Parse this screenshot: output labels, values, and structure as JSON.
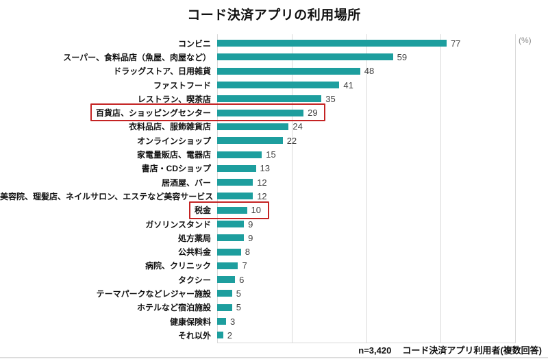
{
  "title": "コード決済アプリの利用場所",
  "unit_label": "(%)",
  "footer": {
    "sample": "n=3,420",
    "respondents": "コード決済アプリ利用者(複数回答)"
  },
  "colors": {
    "bar": "#1d9e9e",
    "highlight": "#c42323",
    "gridline": "#d9d9d9"
  },
  "chart_data": {
    "type": "bar",
    "orientation": "horizontal",
    "title": "コード決済アプリの利用場所",
    "unit": "%",
    "xlim": [
      0,
      100
    ],
    "gridlines": [
      0,
      25,
      50,
      75,
      100
    ],
    "legend": "none",
    "categories": [
      "コンビニ",
      "スーパー、食料品店（魚屋、肉屋など）",
      "ドラッグストア、日用雑貨",
      "ファストフード",
      "レストラン、喫茶店",
      "百貨店、ショッピングセンター",
      "衣料品店、服飾雑貨店",
      "オンラインショップ",
      "家電量販店、電器店",
      "書店・CDショップ",
      "居酒屋、バー",
      "美容院、理髪店、ネイルサロン、エステなど美容サービス",
      "税金",
      "ガソリンスタンド",
      "処方薬局",
      "公共料金",
      "病院、クリニック",
      "タクシー",
      "テーマパークなどレジャー施設",
      "ホテルなど宿泊施設",
      "健康保険料",
      "それ以外"
    ],
    "values": [
      77,
      59,
      48,
      41,
      35,
      29,
      24,
      22,
      15,
      13,
      12,
      12,
      10,
      9,
      9,
      8,
      7,
      6,
      5,
      5,
      3,
      2
    ],
    "highlighted_categories": [
      "百貨店、ショッピングセンター",
      "税金"
    ]
  }
}
